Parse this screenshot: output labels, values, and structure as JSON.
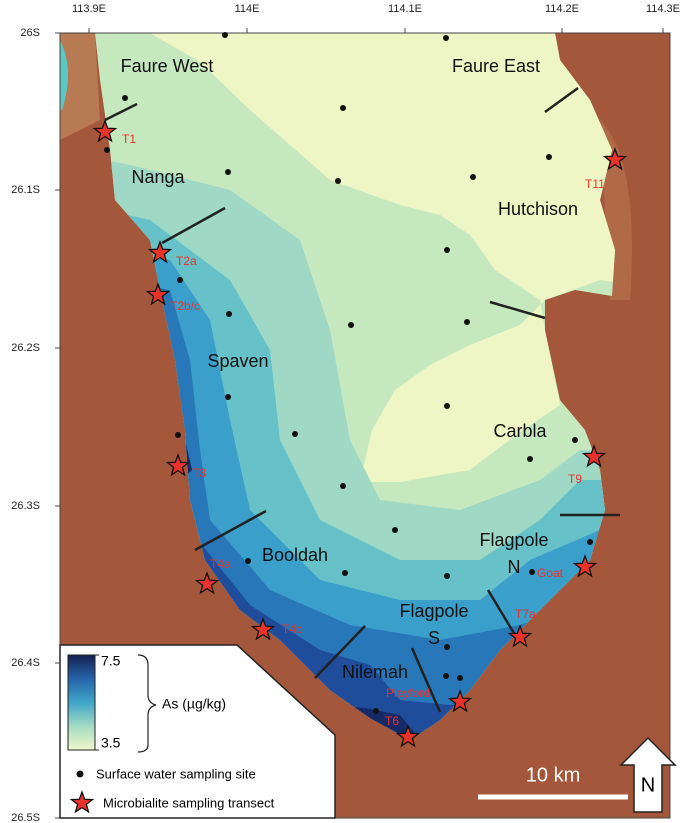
{
  "axes": {
    "x_ticks": [
      "113.9E",
      "114E",
      "114.1E",
      "114.2E",
      "114.3E"
    ],
    "y_ticks": [
      "26S",
      "26.1S",
      "26.2S",
      "26.3S",
      "26.4S",
      "26.5S"
    ]
  },
  "regions": [
    {
      "lines": [
        "Faure West"
      ]
    },
    {
      "lines": [
        "Faure East"
      ]
    },
    {
      "lines": [
        "Nanga"
      ]
    },
    {
      "lines": [
        "Hutchison"
      ]
    },
    {
      "lines": [
        "Spaven"
      ]
    },
    {
      "lines": [
        "Carbla"
      ]
    },
    {
      "lines": [
        "Booldah"
      ]
    },
    {
      "lines": [
        "Flagpole",
        "N"
      ]
    },
    {
      "lines": [
        "Flagpole",
        "S"
      ]
    },
    {
      "lines": [
        "Nilemah"
      ]
    }
  ],
  "transects": [
    "T1",
    "T11",
    "T2a",
    "T2b/c",
    "T3",
    "T9",
    "T4a",
    "T4b",
    "Goat",
    "T7a",
    "Playford",
    "T6"
  ],
  "legend": {
    "colorbar": {
      "max": 7.5,
      "min": 3.5,
      "label": "As (µg/kg)"
    },
    "site_label": "Surface water sampling site",
    "transect_label": "Microbialite sampling transect"
  },
  "scale_bar": "10 km",
  "north": "N"
}
